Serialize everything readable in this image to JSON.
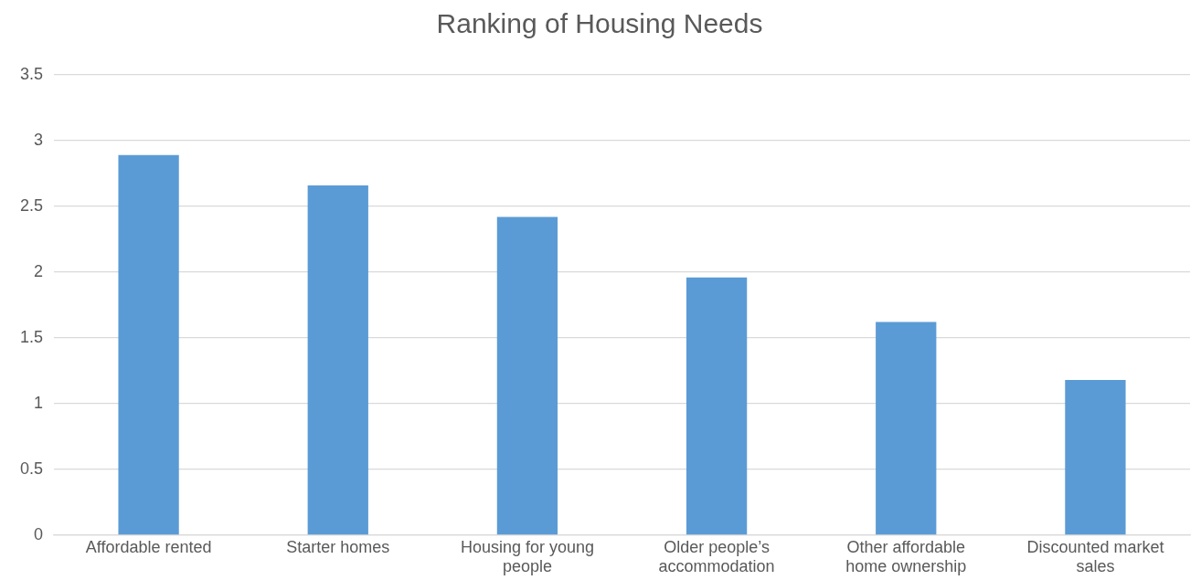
{
  "chart_data": {
    "type": "bar",
    "title": "Ranking of Housing Needs",
    "categories": [
      "Affordable rented",
      "Starter homes",
      "Housing for young people",
      "Older people’s accommodation",
      "Other affordable home ownership",
      "Discounted market sales"
    ],
    "values": [
      2.89,
      2.66,
      2.42,
      1.96,
      1.62,
      1.18
    ],
    "color": "#5b9bd5",
    "ylim": [
      0,
      3.5
    ],
    "yticks": [
      0,
      0.5,
      1,
      1.5,
      2,
      2.5,
      3,
      3.5
    ],
    "grid": "y",
    "legend": false
  }
}
